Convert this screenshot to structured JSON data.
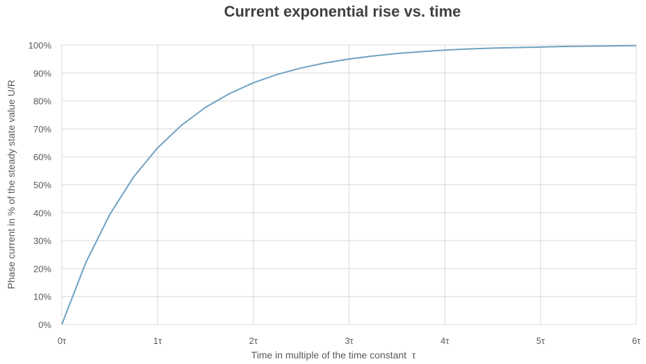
{
  "chart_data": {
    "type": "line",
    "title": "Current exponential rise vs. time",
    "xlabel": "Time in multiple of the time constant  τ",
    "ylabel": "Phase current in % of the steady state value U/R",
    "x_ticks": [
      "0τ",
      "1τ",
      "2τ",
      "3τ",
      "4τ",
      "5τ",
      "6τ"
    ],
    "y_ticks": [
      "0%",
      "10%",
      "20%",
      "30%",
      "40%",
      "50%",
      "60%",
      "70%",
      "80%",
      "90%",
      "100%"
    ],
    "xlim": [
      0,
      6
    ],
    "ylim": [
      0,
      100
    ],
    "grid": true,
    "line_color": "#6fa1c2",
    "series": [
      {
        "x": [
          0,
          0.25,
          0.5,
          0.75,
          1,
          1.25,
          1.5,
          1.75,
          2,
          2.25,
          2.5,
          2.75,
          3,
          3.25,
          3.5,
          3.75,
          4,
          4.25,
          4.5,
          4.75,
          5,
          5.25,
          5.5,
          5.75,
          6
        ],
        "y": [
          0,
          22.1,
          39.3,
          52.8,
          63.2,
          71.3,
          77.7,
          82.6,
          86.5,
          89.5,
          91.8,
          93.6,
          95.0,
          96.1,
          97.0,
          97.6,
          98.2,
          98.6,
          98.9,
          99.1,
          99.3,
          99.5,
          99.6,
          99.7,
          99.8
        ]
      }
    ]
  }
}
